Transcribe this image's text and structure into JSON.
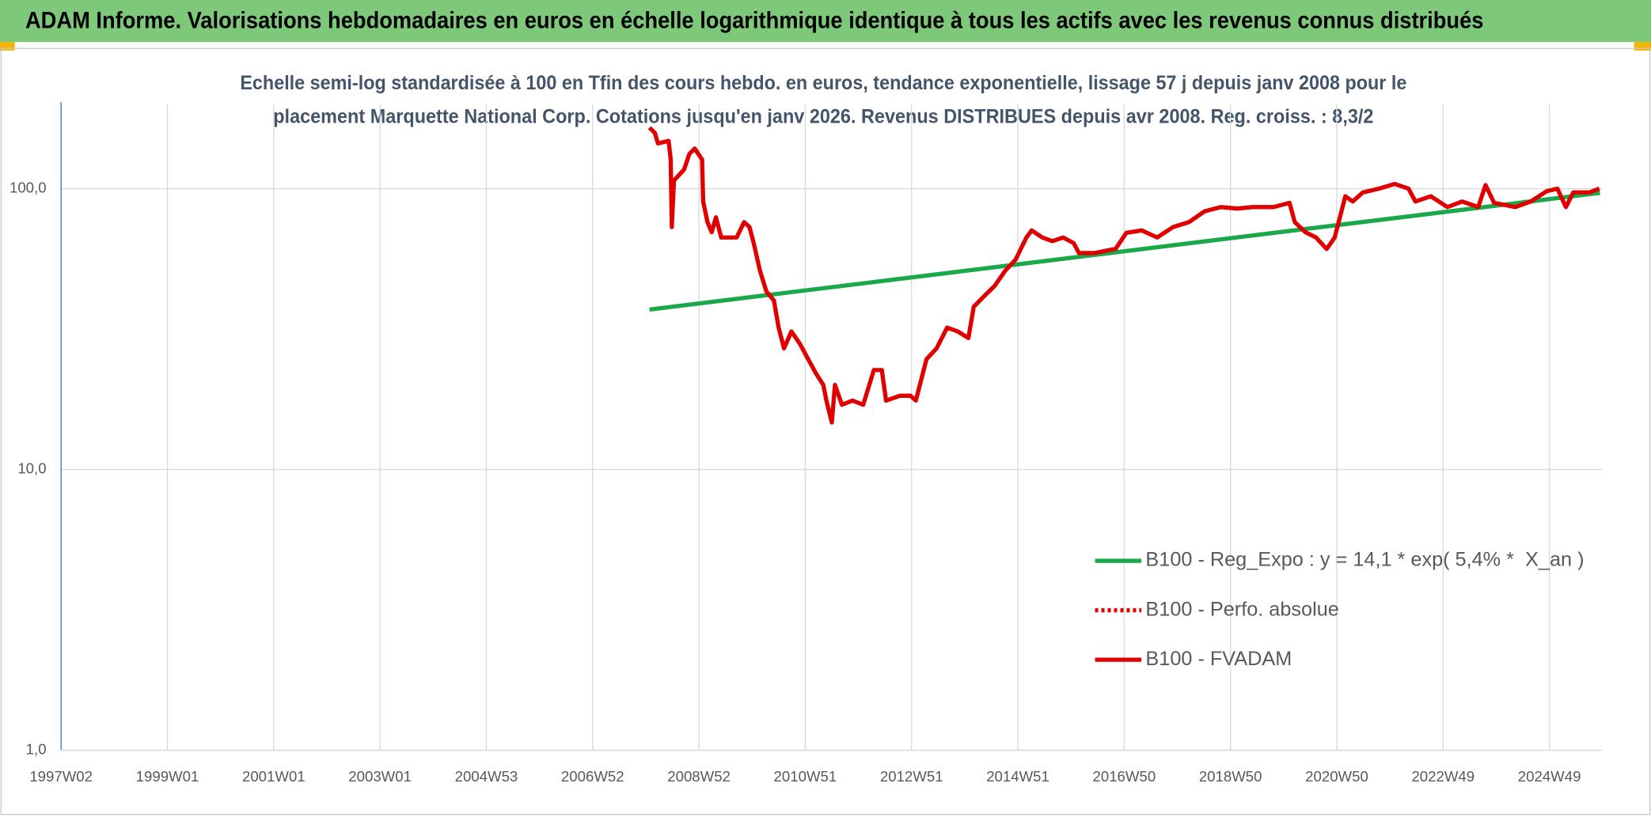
{
  "header": {
    "title": "ADAM Informe. Valorisations hebdomadaires en euros en échelle logarithmique identique à tous les actifs avec les revenus connus distribués"
  },
  "chart_data": {
    "type": "line",
    "subtitle": [
      "Echelle semi-log standardisée à 100 en Tfin des cours hebdo. en euros, tendance exponentielle, lissage 57 j depuis janv 2008 pour le",
      "placement Marquette National Corp. Cotations jusqu'en janv 2026. Revenus DISTRIBUES depuis avr 2008. Reg. croiss. : 8,3/2"
    ],
    "log_y": true,
    "grid": true,
    "legend": "right",
    "xlim": [
      1997.0,
      2026.0
    ],
    "xticks": [
      {
        "value": 1997.0,
        "label": "1997W02"
      },
      {
        "value": 1999.0,
        "label": "1999W01"
      },
      {
        "value": 2001.0,
        "label": "2001W01"
      },
      {
        "value": 2003.0,
        "label": "2003W01"
      },
      {
        "value": 2005.0,
        "label": "2004W53"
      },
      {
        "value": 2007.0,
        "label": "2006W52"
      },
      {
        "value": 2009.0,
        "label": "2008W52"
      },
      {
        "value": 2011.0,
        "label": "2010W51"
      },
      {
        "value": 2013.0,
        "label": "2012W51"
      },
      {
        "value": 2015.0,
        "label": "2014W51"
      },
      {
        "value": 2017.0,
        "label": "2016W50"
      },
      {
        "value": 2019.0,
        "label": "2018W50"
      },
      {
        "value": 2021.0,
        "label": "2020W50"
      },
      {
        "value": 2023.0,
        "label": "2022W49"
      },
      {
        "value": 2025.0,
        "label": "2024W49"
      }
    ],
    "ylim": [
      1,
      200
    ],
    "yticks": [
      {
        "value": 1,
        "label": "1,0"
      },
      {
        "value": 10,
        "label": "10,0"
      },
      {
        "value": 100,
        "label": "100,0"
      }
    ],
    "series": [
      {
        "name": "B100 - Reg_Expo : y = 14,1 * exp( 5,4% *  X_an )",
        "color": "#1aa84a",
        "style": "solid",
        "x": [
          2008.07,
          2025.95
        ],
        "values": [
          37.1,
          96.6
        ]
      },
      {
        "name": "B100 - Perfo. absolue",
        "color": "#e00000",
        "style": "dotted",
        "x": [],
        "values": []
      },
      {
        "name": "B100 - FVADAM",
        "color": "#e00000",
        "style": "solid",
        "x": [
          2008.07,
          2008.17,
          2008.23,
          2008.43,
          2008.47,
          2008.49,
          2008.53,
          2008.72,
          2008.82,
          2008.92,
          2009.06,
          2009.08,
          2009.16,
          2009.24,
          2009.32,
          2009.42,
          2009.71,
          2009.85,
          2009.95,
          2010.03,
          2010.15,
          2010.27,
          2010.41,
          2010.5,
          2010.6,
          2010.74,
          2010.9,
          2011.04,
          2011.2,
          2011.34,
          2011.4,
          2011.5,
          2011.56,
          2011.69,
          2011.89,
          2012.09,
          2012.29,
          2012.44,
          2012.52,
          2012.78,
          2012.98,
          2013.08,
          2013.28,
          2013.47,
          2013.67,
          2013.87,
          2014.07,
          2014.17,
          2014.37,
          2014.56,
          2014.76,
          2014.96,
          2015.16,
          2015.26,
          2015.46,
          2015.65,
          2015.85,
          2016.05,
          2016.15,
          2016.44,
          2016.84,
          2017.04,
          2017.33,
          2017.62,
          2017.92,
          2018.22,
          2018.51,
          2018.82,
          2019.12,
          2019.42,
          2019.81,
          2020.11,
          2020.21,
          2020.41,
          2020.61,
          2020.81,
          2020.96,
          2021.16,
          2021.3,
          2021.49,
          2021.79,
          2022.09,
          2022.35,
          2022.48,
          2022.77,
          2023.08,
          2023.36,
          2023.66,
          2023.8,
          2023.96,
          2024.36,
          2024.65,
          2024.95,
          2025.15,
          2025.31,
          2025.45,
          2025.75,
          2025.94
        ],
        "values": [
          165,
          158,
          145,
          148,
          127,
          73,
          107,
          117,
          133,
          139,
          127,
          90,
          76,
          70,
          79,
          67,
          67,
          76,
          73,
          64,
          51,
          43,
          40,
          32,
          27,
          31,
          28,
          25,
          22,
          20,
          17.5,
          14.7,
          20,
          17,
          17.6,
          17,
          22.6,
          22.6,
          17.6,
          18.3,
          18.3,
          17.6,
          24.7,
          27,
          32,
          31,
          29.4,
          38,
          41.5,
          45,
          51,
          56,
          67,
          71,
          67,
          65,
          67,
          64,
          59,
          59,
          61.1,
          69.6,
          71,
          67,
          73,
          76,
          83,
          86,
          85,
          86,
          86,
          89,
          76,
          70,
          67,
          61,
          67,
          94,
          90,
          97,
          100,
          104,
          100,
          90,
          94,
          86,
          90,
          86,
          103,
          89,
          86,
          90,
          98,
          100,
          86,
          97,
          97,
          100
        ]
      }
    ]
  }
}
